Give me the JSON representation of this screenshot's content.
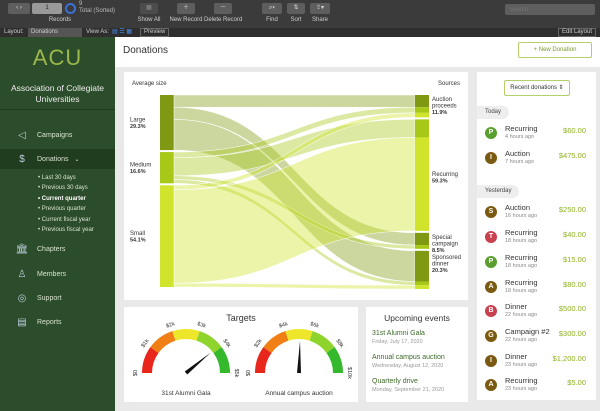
{
  "toolbar": {
    "record_number": "1",
    "total": "9",
    "total_label": "Total (Sorted)",
    "records_label": "Records",
    "show_all": "Show All",
    "new_record": "New Record",
    "delete_record": "Delete Record",
    "find": "Find",
    "sort": "Sort",
    "share": "Share",
    "search_placeholder": "Search"
  },
  "layout_bar": {
    "layout_label": "Layout:",
    "layout_value": "Donations",
    "view_as": "View As:",
    "preview": "Preview",
    "edit_layout": "Edit Layout"
  },
  "sidebar": {
    "logo": "ACU",
    "org": "Association of Collegiate Universities",
    "items": [
      {
        "label": "Campaigns",
        "icon": "megaphone-icon"
      },
      {
        "label": "Donations",
        "icon": "dollar-shield-icon"
      },
      {
        "label": "Chapters",
        "icon": "bank-icon"
      },
      {
        "label": "Members",
        "icon": "member-icon"
      },
      {
        "label": "Support",
        "icon": "lifebuoy-icon"
      },
      {
        "label": "Reports",
        "icon": "document-icon"
      }
    ],
    "sub_items": [
      "Last 30 days",
      "Previous 30 days",
      "Current quarter",
      "Previous quarter",
      "Current fiscal year",
      "Previous fiscal year"
    ],
    "current_sub": "Current quarter"
  },
  "header": {
    "title": "Donations",
    "new_donation": "+ New Donation"
  },
  "chart_data": {
    "type": "sankey",
    "left_title": "Average size",
    "right_title": "Sources",
    "sources": [
      {
        "name": "Large",
        "value": 29.3,
        "label": "29.3%"
      },
      {
        "name": "Medium",
        "value": 16.6,
        "label": "16.6%"
      },
      {
        "name": "Small",
        "value": 54.1,
        "label": "54.1%"
      }
    ],
    "targets": [
      {
        "name": "Auction proceeds",
        "value": 11.9,
        "label": "11.9%"
      },
      {
        "name": "Recurring",
        "value": 59.3,
        "label": "59.3%"
      },
      {
        "name": "Special campaign",
        "value": 8.5,
        "label": "8.5%"
      },
      {
        "name": "Sponsored dinner",
        "value": 20.3,
        "label": "20.3%"
      }
    ],
    "flows": [
      [
        "Large",
        "Auction proceeds",
        6.5
      ],
      [
        "Large",
        "Special campaign",
        6.5
      ],
      [
        "Large",
        "Sponsored dinner",
        16.3
      ],
      [
        "Medium",
        "Auction proceeds",
        3
      ],
      [
        "Medium",
        "Recurring",
        9.6
      ],
      [
        "Medium",
        "Special campaign",
        2
      ],
      [
        "Medium",
        "Sponsored dinner",
        2
      ],
      [
        "Small",
        "Auction proceeds",
        2.4
      ],
      [
        "Small",
        "Recurring",
        49.7
      ],
      [
        "Small",
        "Sponsored dinner",
        2
      ]
    ],
    "colors": {
      "Large": "#7f9a12",
      "Medium": "#a8c818",
      "Small": "#cfe42a"
    }
  },
  "targets": {
    "title": "Targets",
    "gauges": [
      {
        "name": "31st Alumni Gala",
        "ticks": [
          "$0",
          "$1k",
          "$2k",
          "$3k",
          "$4k",
          "$5k"
        ],
        "max": 5000,
        "value": 3900
      },
      {
        "name": "Annual campus auction",
        "ticks": [
          "$0",
          "$2k",
          "$4k",
          "$6k",
          "$8k",
          "$10k"
        ],
        "max": 10000,
        "value": 5100
      }
    ]
  },
  "events": {
    "title": "Upcoming events",
    "items": [
      {
        "name": "31st Alumni Gala",
        "date": "Friday, July 17, 2020"
      },
      {
        "name": "Annual campus auction",
        "date": "Wednesday, August 12, 2020"
      },
      {
        "name": "Quarterly drive",
        "date": "Monday, September 21, 2020"
      }
    ]
  },
  "recent": {
    "button": "Recent donations ⇕",
    "groups": [
      {
        "label": "Today",
        "items": [
          {
            "initial": "P",
            "color": "#5a9e2f",
            "name": "Recurring",
            "time": "4 hours ago",
            "amount": "$60.00"
          },
          {
            "initial": "I",
            "color": "#7a5a10",
            "name": "Auction",
            "time": "7 hours ago",
            "amount": "$475.00"
          }
        ]
      },
      {
        "label": "Yesterday",
        "items": [
          {
            "initial": "S",
            "color": "#7a5a10",
            "name": "Auction",
            "time": "16 hours ago",
            "amount": "$250.00"
          },
          {
            "initial": "T",
            "color": "#c8414f",
            "name": "Recurring",
            "time": "18 hours ago",
            "amount": "$40.00"
          },
          {
            "initial": "P",
            "color": "#5a9e2f",
            "name": "Recurring",
            "time": "18 hours ago",
            "amount": "$15.00"
          },
          {
            "initial": "A",
            "color": "#7a5a10",
            "name": "Recurring",
            "time": "18 hours ago",
            "amount": "$80.00"
          },
          {
            "initial": "B",
            "color": "#c8414f",
            "name": "Dinner",
            "time": "22 hours ago",
            "amount": "$500.00"
          },
          {
            "initial": "G",
            "color": "#7a5a10",
            "name": "Campaign #2",
            "time": "22 hours ago",
            "amount": "$300.00"
          },
          {
            "initial": "I",
            "color": "#7a5a10",
            "name": "Dinner",
            "time": "23 hours ago",
            "amount": "$1,200.00"
          },
          {
            "initial": "A",
            "color": "#7a5a10",
            "name": "Recurring",
            "time": "23 hours ago",
            "amount": "$5.00"
          }
        ]
      }
    ]
  }
}
